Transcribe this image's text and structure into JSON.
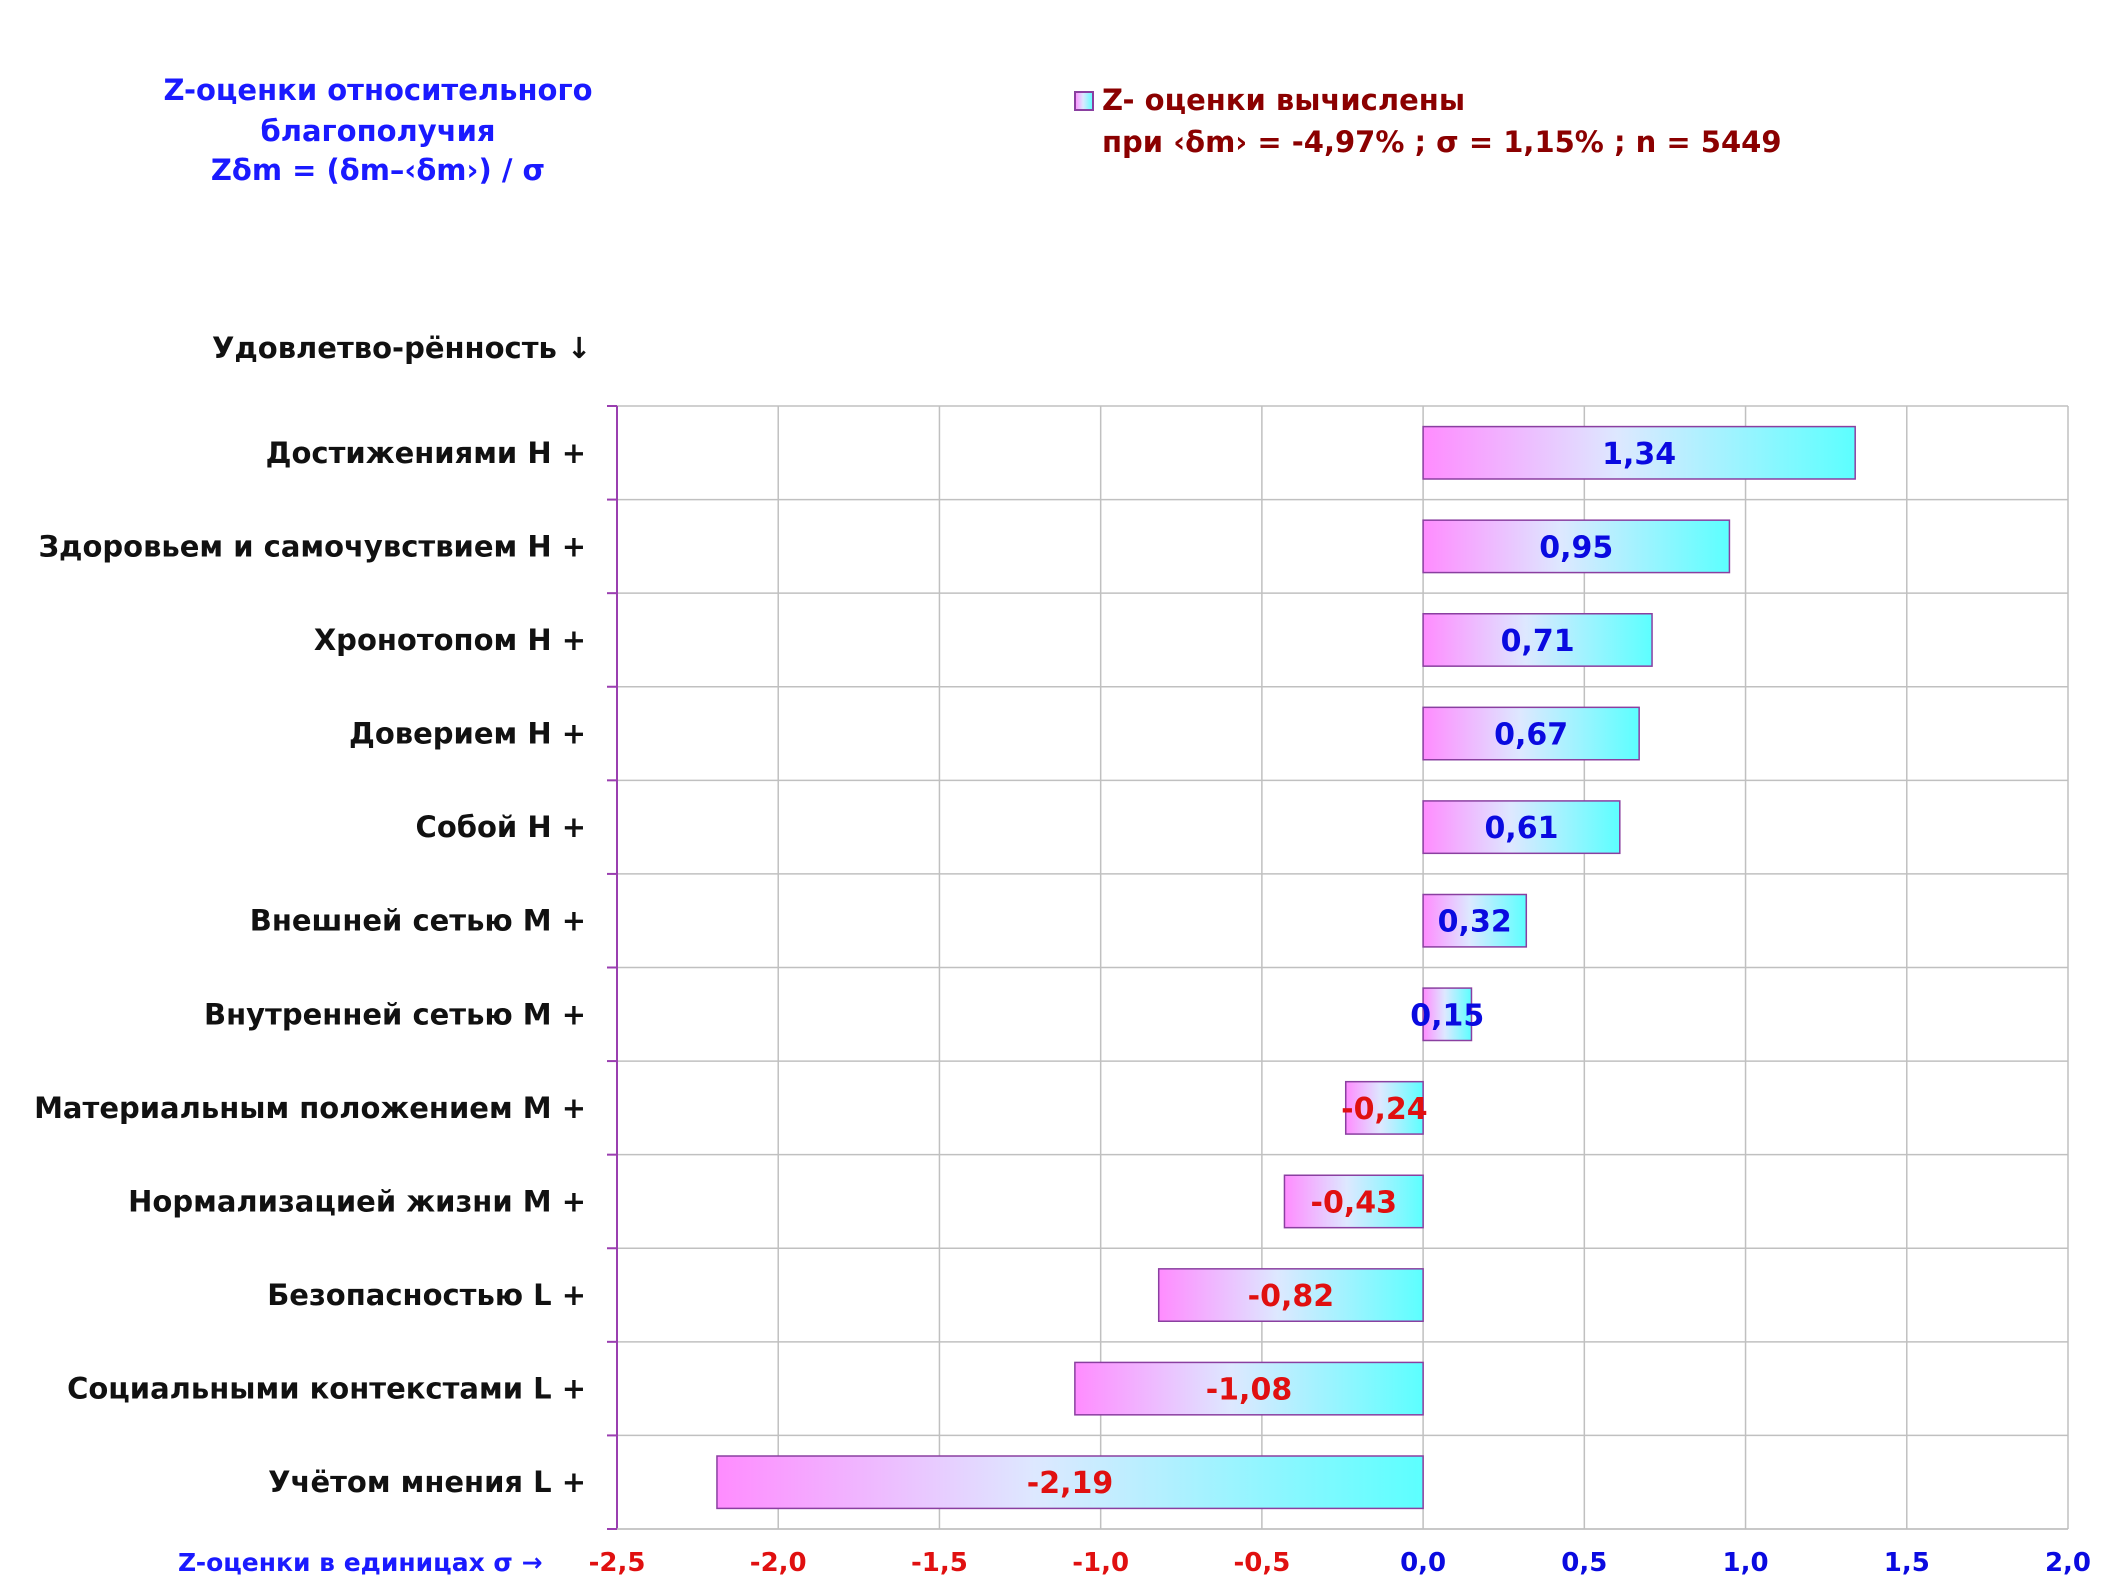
{
  "chart_data": {
    "type": "bar",
    "orientation": "horizontal",
    "title_lines": [
      "Z-оценки  относительного",
      "благополучия",
      "Zδm = (δm–‹δm›) / σ"
    ],
    "legend": {
      "line1": "Z- оценки вычислены",
      "line2": "при ‹δm› = -4,97% ; σ = 1,15% ; n = 5449",
      "placement": "top-right"
    },
    "category_header": "Удовлетво-рённость ↓",
    "xlabel": "Z-оценки в единицах σ →",
    "xlim": [
      -2.5,
      2.0
    ],
    "x_ticks": [
      "-2,5",
      "-2,0",
      "-1,5",
      "-1,0",
      "-0,5",
      "0,0",
      "0,5",
      "1,0",
      "1,5",
      "2,0"
    ],
    "x_tick_values": [
      -2.5,
      -2.0,
      -1.5,
      -1.0,
      -0.5,
      0.0,
      0.5,
      1.0,
      1.5,
      2.0
    ],
    "grid": true,
    "categories": [
      "Достижениями  Н +",
      "Здоровьем и самочувствием  Н +",
      "Хронотопом  Н +",
      "Доверием  Н +",
      "Собой  Н +",
      "Внешней сетью  М +",
      "Внутренней сетью  М +",
      "Материальным положением  М +",
      "Нормализацией жизни  М +",
      "Безопасностью  L +",
      "Социальными контекстами  L +",
      "Учётом мнения  L +"
    ],
    "values": [
      1.34,
      0.95,
      0.71,
      0.67,
      0.61,
      0.32,
      0.15,
      -0.24,
      -0.43,
      -0.82,
      -1.08,
      -2.19
    ],
    "value_labels": [
      "1,34",
      "0,95",
      "0,71",
      "0,67",
      "0,61",
      "0,32",
      "0,15",
      "-0,24",
      "-0,43",
      "-0,82",
      "-1,08",
      "-2,19"
    ],
    "colors": {
      "positive_label": "#0a0ae0",
      "negative_label": "#e01010",
      "gradient_start": "#ff8cff",
      "gradient_mid": "#dde8ff",
      "gradient_end": "#5cffff",
      "bar_border": "#8a3fa0",
      "grid": "#c0c0c0",
      "axis": "#9a3fb0",
      "tick_negative": "#e01010",
      "tick_positive": "#0a0ae0"
    }
  }
}
